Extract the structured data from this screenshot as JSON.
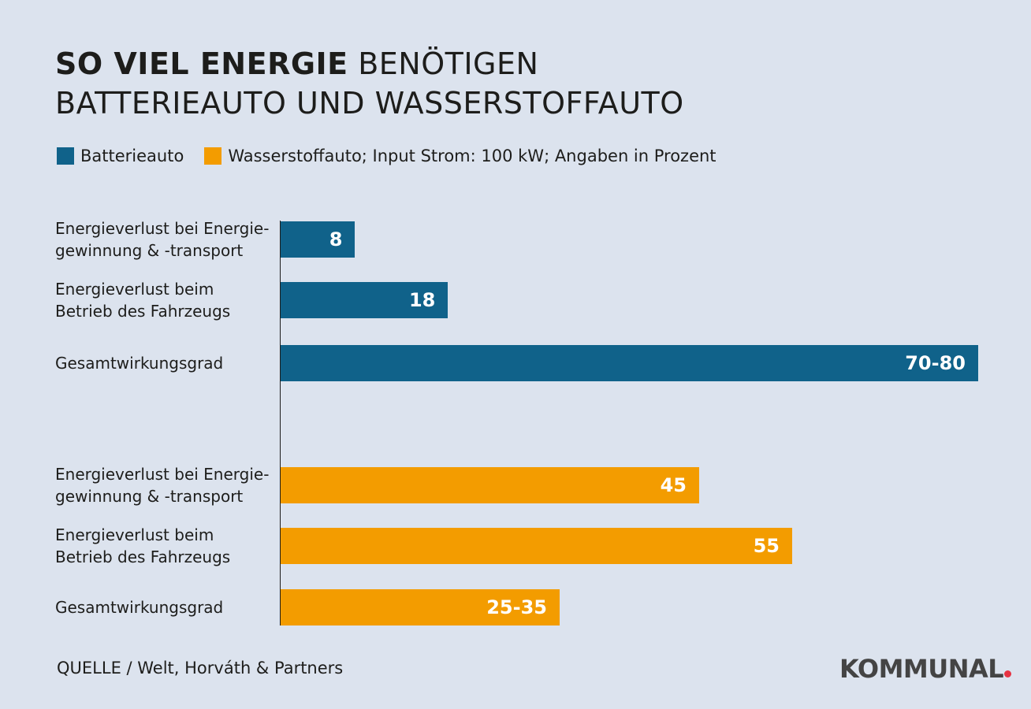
{
  "title": {
    "bold": "SO VIEL ENERGIE",
    "rest_line1": " BENÖTIGEN",
    "line2": "BATTERIEAUTO UND WASSERSTOFFAUTO"
  },
  "legend": [
    {
      "label": "Batterieauto",
      "color": "#10628a"
    },
    {
      "label": "Wasserstoffauto; Input Strom: 100 kW; Angaben in Prozent",
      "color": "#f39c00"
    }
  ],
  "chart_data": {
    "type": "bar",
    "orientation": "horizontal",
    "unit": "Prozent",
    "categories": [
      "Energieverlust bei Energie-gewinnung & -transport",
      "Energieverlust beim Betrieb des Fahrzeugs",
      "Gesamtwirkungsgrad"
    ],
    "category_lines": [
      [
        "Energieverlust bei Energie-",
        "gewinnung & -transport"
      ],
      [
        "Energieverlust beim",
        "Betrieb des Fahrzeugs"
      ],
      [
        "Gesamtwirkungsgrad"
      ]
    ],
    "series": [
      {
        "name": "Batterieauto",
        "color": "#10628a",
        "labels": [
          "8",
          "18",
          "70-80"
        ],
        "values": [
          8,
          18,
          [
            70,
            80
          ]
        ]
      },
      {
        "name": "Wasserstoffauto",
        "color": "#f39c00",
        "labels": [
          "45",
          "55",
          "25-35"
        ],
        "values": [
          45,
          55,
          [
            25,
            35
          ]
        ]
      }
    ],
    "xlim": [
      0,
      75
    ],
    "grid": false
  },
  "source": "QUELLE / Welt, Horváth & Partners",
  "logo": "KOMMUNAL"
}
